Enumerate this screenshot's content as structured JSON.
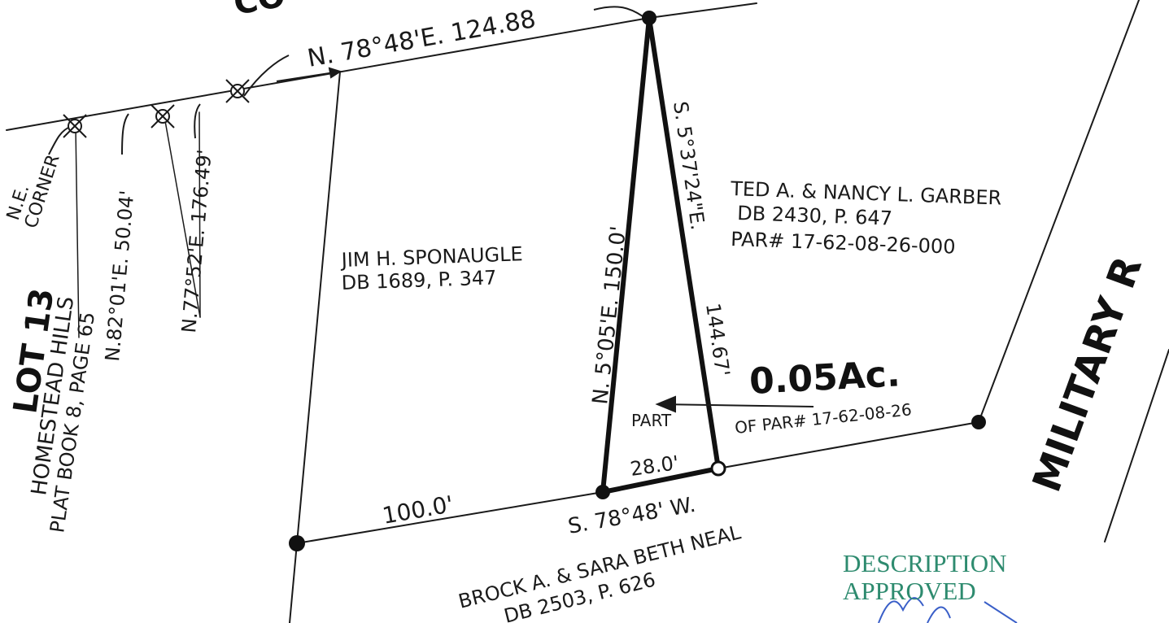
{
  "colors": {
    "ink": "#1a1a1a",
    "stamp": "#2e8b6f",
    "signature": "#3a5fc8"
  },
  "street_top": "CO",
  "road": "MILITARY R",
  "lot_label": "LOT 13",
  "subdivision": {
    "name": "HOMESTEAD HILLS",
    "plat": "PLAT BOOK 8, PAGE 65"
  },
  "corner_label": {
    "line1": "N.E.",
    "line2": "CORNER"
  },
  "calls": {
    "north_line": "N. 78°48'E.  124.88",
    "call_1": "N.82°01'E.  50.04'",
    "call_2": "N.77°52'E. 176.49'",
    "west_leg": "N. 5°05'E.  150.0'",
    "east_leg": "S. 5°37'24\"E.",
    "east_leg_dist": "144.67'",
    "base": "28.0'",
    "south_bearing": "S. 78°48' W.",
    "south_dist": "100.0'"
  },
  "owners": {
    "sponaugle": {
      "name": "JIM H. SPONAUGLE",
      "deed": "DB 1689, P. 347"
    },
    "garber": {
      "name": "TED A. & NANCY L. GARBER",
      "deed": "DB 2430, P. 647",
      "parcel": "PAR# 17-62-08-26-000"
    },
    "neal": {
      "name": "BROCK A. & SARA BETH NEAL",
      "deed": "DB 2503, P. 626"
    }
  },
  "area": "0.05Ac.",
  "part_of": {
    "part": "PART",
    "of_par": "OF PAR# 17-62-08-26"
  },
  "stamp": {
    "line1": "DESCRIPTION",
    "line2": "APPROVED"
  }
}
